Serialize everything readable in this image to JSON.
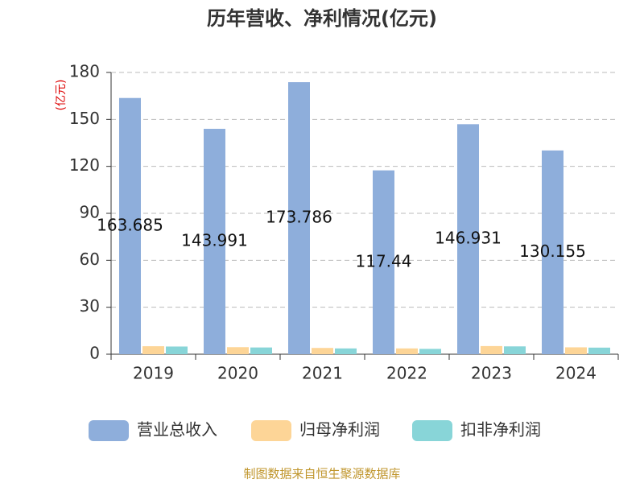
{
  "chart_data": {
    "type": "bar",
    "title": "历年营收、净利情况(亿元)",
    "y_unit": "(亿元)",
    "categories": [
      "2019",
      "2020",
      "2021",
      "2022",
      "2023",
      "2024"
    ],
    "series": [
      {
        "name": "营业总收入",
        "color": "#8eaedb",
        "values": [
          163.685,
          143.991,
          173.786,
          117.44,
          146.931,
          130.155
        ],
        "show_labels": true
      },
      {
        "name": "归母净利润",
        "color": "#fdd597",
        "values": [
          5.1,
          4.5,
          4.0,
          3.7,
          5.2,
          4.4
        ],
        "show_labels": false
      },
      {
        "name": "扣非净利润",
        "color": "#88d5d8",
        "values": [
          4.9,
          4.3,
          3.7,
          3.4,
          5.0,
          4.2
        ],
        "show_labels": false
      }
    ],
    "ylim": [
      0,
      180
    ],
    "yticks": [
      0,
      30,
      60,
      90,
      120,
      150,
      180
    ],
    "grid": true,
    "legend": "bottom",
    "source": "制图数据来自恒生聚源数据库"
  }
}
